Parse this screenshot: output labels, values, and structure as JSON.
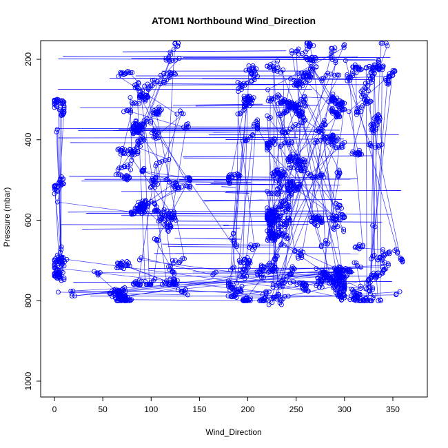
{
  "chart_data": {
    "type": "scatter",
    "title": "ATOM1 Northbound Wind_Direction",
    "xlabel": "Wind_Direction",
    "ylabel": "Pressure (mbar)",
    "xlim": [
      0,
      360
    ],
    "ylim": [
      1000,
      160
    ],
    "y_reversed": true,
    "xticks": [
      0,
      50,
      100,
      150,
      200,
      250,
      300,
      350
    ],
    "yticks": [
      200,
      400,
      600,
      800,
      1000
    ],
    "marker": "open-circle",
    "connected_by_lines": true,
    "series_color": "#0000ff",
    "grid": false,
    "point_density": [
      {
        "x_range": [
          0,
          10
        ],
        "p_range": [
          190,
          800
        ],
        "weight": 0.05
      },
      {
        "x_range": [
          60,
          140
        ],
        "p_range": [
          160,
          760
        ],
        "weight": 0.22
      },
      {
        "x_range": [
          180,
          210
        ],
        "p_range": [
          170,
          800
        ],
        "weight": 0.07
      },
      {
        "x_range": [
          220,
          300
        ],
        "p_range": [
          160,
          810
        ],
        "weight": 0.4
      },
      {
        "x_range": [
          300,
          360
        ],
        "p_range": [
          160,
          800
        ],
        "weight": 0.1
      },
      {
        "x_range": [
          0,
          360
        ],
        "p_range": [
          690,
          800
        ],
        "weight": 0.16
      }
    ]
  }
}
